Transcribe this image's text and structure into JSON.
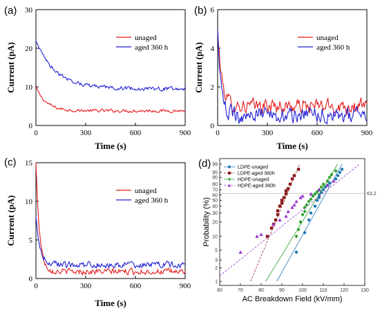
{
  "chart_data": [
    {
      "panel_label": "(a)",
      "type": "line",
      "xlabel": "Time (s)",
      "ylabel": "Current (pA)",
      "xlim": [
        0,
        900
      ],
      "ylim": [
        0,
        30
      ],
      "xticks": [
        "0",
        "300",
        "600",
        "900"
      ],
      "yticks": [
        "0",
        "10",
        "20",
        "30"
      ],
      "legend_position": "upper-right",
      "series": [
        {
          "name": "unaged",
          "color": "#e41a1c",
          "start": 10,
          "end": 3.8,
          "tau": 60,
          "noise": 0.6
        },
        {
          "name": "aged 360 h",
          "color": "#1f1fd6",
          "start": 22,
          "end": 9.5,
          "tau": 120,
          "noise": 0.7
        }
      ]
    },
    {
      "panel_label": "(b)",
      "type": "line",
      "xlabel": "Time (s)",
      "ylabel": "Current (pA)",
      "xlim": [
        0,
        900
      ],
      "ylim": [
        0,
        6
      ],
      "xticks": [
        "0",
        "300",
        "600",
        "900"
      ],
      "yticks": [
        "0",
        "2",
        "4",
        "6"
      ],
      "legend_position": "upper-right",
      "series": [
        {
          "name": "unaged",
          "color": "#e41a1c",
          "start": 5.0,
          "end": 1.0,
          "tau": 25,
          "noise": 0.55
        },
        {
          "name": "aged 360 h",
          "color": "#1f1fd6",
          "start": 5.0,
          "end": 0.55,
          "tau": 20,
          "noise": 0.6
        }
      ]
    },
    {
      "panel_label": "(c)",
      "type": "line",
      "xlabel": "Time (s)",
      "ylabel": "Current (pA)",
      "xlim": [
        0,
        900
      ],
      "ylim": [
        0,
        15
      ],
      "xticks": [
        "0",
        "300",
        "600",
        "900"
      ],
      "yticks": [
        "0",
        "5",
        "10",
        "15"
      ],
      "legend_position": "upper-right",
      "series": [
        {
          "name": "unaged",
          "color": "#e41a1c",
          "start": 15,
          "end": 0.9,
          "tau": 22,
          "noise": 0.55
        },
        {
          "name": "aged 360 h",
          "color": "#1f1fd6",
          "start": 8,
          "end": 1.8,
          "tau": 25,
          "noise": 0.6
        }
      ]
    },
    {
      "panel_label": "(d)",
      "type": "scatter",
      "xlabel": "AC Breakdown Field (kV/mm)",
      "ylabel": "Probability (%)",
      "xlim": [
        60,
        130
      ],
      "xticks": [
        "60",
        "70",
        "80",
        "90",
        "100",
        "110",
        "120",
        "130"
      ],
      "yticks": [
        "1",
        "2",
        "3",
        "5",
        "10",
        "20",
        "30",
        "40",
        "50",
        "60",
        "70",
        "80",
        "90",
        "95",
        "99"
      ],
      "ytick_values": [
        1,
        2,
        3,
        5,
        10,
        20,
        30,
        40,
        50,
        60,
        70,
        80,
        90,
        95,
        99
      ],
      "ylim": [
        1,
        99
      ],
      "scale": "weibull",
      "reference_line": {
        "label": "63.2",
        "value": 63.2
      },
      "legend_position": "upper-left",
      "series": [
        {
          "name": "LDPE-unaged",
          "color": "#1f77b4",
          "marker": "circle",
          "line": "solid",
          "points": [
            [
              97,
              4.5
            ],
            [
              101,
              12
            ],
            [
              103,
              22
            ],
            [
              104,
              30
            ],
            [
              106,
              40
            ],
            [
              107,
              50
            ],
            [
              108,
              55
            ],
            [
              108,
              60
            ],
            [
              109,
              65
            ],
            [
              110,
              70
            ],
            [
              111,
              75
            ],
            [
              112,
              78
            ],
            [
              113,
              82
            ],
            [
              116,
              88
            ],
            [
              117,
              92
            ],
            [
              118,
              95
            ],
            [
              119,
              97
            ]
          ]
        },
        {
          "name": "LDPE-aged 360h",
          "color": "#8b1a1a",
          "marker": "square",
          "line": "dashed",
          "points": [
            [
              83,
              10
            ],
            [
              85,
              15
            ],
            [
              86,
              18
            ],
            [
              87,
              22
            ],
            [
              88,
              28
            ],
            [
              88,
              33
            ],
            [
              89,
              40
            ],
            [
              90,
              45
            ],
            [
              90,
              50
            ],
            [
              91,
              55
            ],
            [
              92,
              62
            ],
            [
              92,
              68
            ],
            [
              93,
              72
            ],
            [
              94,
              80
            ],
            [
              95,
              88
            ],
            [
              96,
              92
            ],
            [
              98,
              97
            ]
          ]
        },
        {
          "name": "HDPE-unaged",
          "color": "#2ca02c",
          "marker": "diamond",
          "line": "solid",
          "points": [
            [
              97,
              10
            ],
            [
              98,
              14
            ],
            [
              99,
              20
            ],
            [
              100,
              28
            ],
            [
              101,
              32
            ],
            [
              101,
              38
            ],
            [
              102,
              42
            ],
            [
              103,
              48
            ],
            [
              104,
              52
            ],
            [
              105,
              58
            ],
            [
              106,
              62
            ],
            [
              107,
              66
            ],
            [
              108,
              70
            ],
            [
              109,
              75
            ],
            [
              110,
              80
            ],
            [
              112,
              85
            ],
            [
              113,
              90
            ],
            [
              114,
              93
            ],
            [
              116,
              96
            ]
          ]
        },
        {
          "name": "HDPE-aged 360h",
          "color": "#9933cc",
          "marker": "triangle",
          "line": "dashed",
          "points": [
            [
              70,
              4.5
            ],
            [
              78,
              10
            ],
            [
              80,
              11
            ],
            [
              86,
              18
            ],
            [
              89,
              22
            ],
            [
              92,
              26
            ],
            [
              93,
              32
            ],
            [
              95,
              38
            ],
            [
              96,
              42
            ],
            [
              97,
              48
            ],
            [
              99,
              55
            ],
            [
              100,
              58
            ],
            [
              104,
              62
            ],
            [
              108,
              70
            ],
            [
              112,
              78
            ],
            [
              115,
              85
            ]
          ]
        }
      ]
    }
  ]
}
